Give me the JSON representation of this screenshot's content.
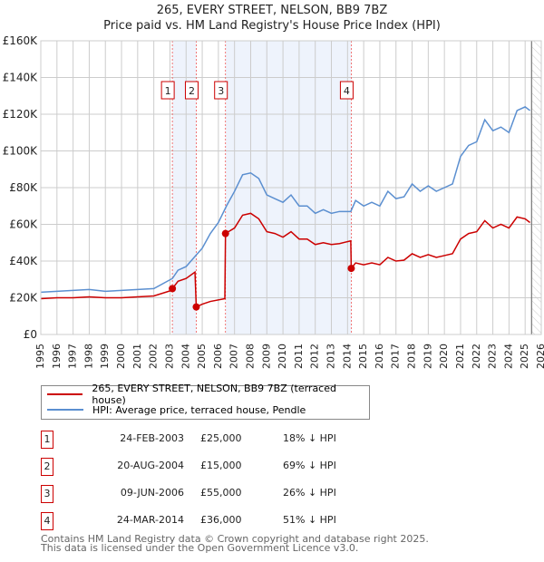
{
  "chart_data": {
    "type": "line",
    "title": "265, EVERY STREET, NELSON, BB9 7BZ",
    "subtitle": "Price paid vs. HM Land Registry's House Price Index (HPI)",
    "xlim": [
      1995,
      2026
    ],
    "ylim": [
      0,
      160000
    ],
    "yticks": [
      0,
      20000,
      40000,
      60000,
      80000,
      100000,
      120000,
      140000,
      160000
    ],
    "ytick_labels": [
      "£0",
      "£20K",
      "£40K",
      "£60K",
      "£80K",
      "£100K",
      "£120K",
      "£140K",
      "£160K"
    ],
    "xticks": [
      1995,
      1996,
      1997,
      1998,
      1999,
      2000,
      2001,
      2002,
      2003,
      2004,
      2005,
      2006,
      2007,
      2008,
      2009,
      2010,
      2011,
      2012,
      2013,
      2014,
      2015,
      2016,
      2017,
      2018,
      2019,
      2020,
      2021,
      2022,
      2023,
      2024,
      2025,
      2026
    ],
    "grid": true,
    "colors": {
      "property": "#cc0000",
      "hpi": "#5b8fd0",
      "shade": "#eef3fc"
    },
    "shaded_periods": [
      [
        2003.15,
        2004.63
      ],
      [
        2006.44,
        2014.23
      ]
    ],
    "forecast_from": 2025.4,
    "series": [
      {
        "name": "265, EVERY STREET, NELSON, BB9 7BZ (terraced house)",
        "color": "#cc0000",
        "x": [
          1995,
          1996,
          1997,
          1998,
          1999,
          2000,
          2001,
          2002,
          2003.1,
          2003.15,
          2003.5,
          2004,
          2004.55,
          2004.63,
          2005,
          2005.5,
          2006.4,
          2006.44,
          2007,
          2007.5,
          2008,
          2008.5,
          2009,
          2009.5,
          2010,
          2010.5,
          2011,
          2011.5,
          2012,
          2012.5,
          2013,
          2013.5,
          2014.2,
          2014.23,
          2014.5,
          2015,
          2015.5,
          2016,
          2016.5,
          2017,
          2017.5,
          2018,
          2018.5,
          2019,
          2019.5,
          2020,
          2020.5,
          2021,
          2021.5,
          2022,
          2022.5,
          2023,
          2023.5,
          2024,
          2024.5,
          2025,
          2025.3
        ],
        "values": [
          19500,
          20000,
          20000,
          20500,
          20000,
          20000,
          20500,
          21000,
          24000,
          25000,
          29000,
          30500,
          34000,
          15000,
          16500,
          18000,
          19500,
          55000,
          58000,
          65000,
          66000,
          63000,
          56000,
          55000,
          53000,
          56000,
          52000,
          52000,
          49000,
          50000,
          49000,
          49500,
          51000,
          36000,
          39000,
          38000,
          39000,
          38000,
          42000,
          40000,
          40500,
          44000,
          42000,
          43500,
          42000,
          43000,
          44000,
          52000,
          55000,
          56000,
          62000,
          58000,
          60000,
          58000,
          64000,
          63000,
          61000
        ]
      },
      {
        "name": "HPI: Average price, terraced house, Pendle",
        "color": "#5b8fd0",
        "x": [
          1995,
          1996,
          1997,
          1998,
          1999,
          2000,
          2001,
          2002,
          2003.15,
          2003.5,
          2004,
          2004.6,
          2005,
          2005.5,
          2006,
          2006.5,
          2007,
          2007.5,
          2008,
          2008.5,
          2009,
          2009.5,
          2010,
          2010.5,
          2011,
          2011.5,
          2012,
          2012.5,
          2013,
          2013.5,
          2014.2,
          2014.5,
          2015,
          2015.5,
          2016,
          2016.5,
          2017,
          2017.5,
          2018,
          2018.5,
          2019,
          2019.5,
          2020,
          2020.5,
          2021,
          2021.5,
          2022,
          2022.5,
          2023,
          2023.5,
          2024,
          2024.5,
          2025,
          2025.3
        ],
        "values": [
          23000,
          23500,
          24000,
          24500,
          23500,
          24000,
          24500,
          25000,
          30500,
          35000,
          37000,
          43000,
          47000,
          55000,
          61000,
          70000,
          78000,
          87000,
          88000,
          85000,
          76000,
          74000,
          72000,
          76000,
          70000,
          70000,
          66000,
          68000,
          66000,
          67000,
          67000,
          73000,
          70000,
          72000,
          70000,
          78000,
          74000,
          75000,
          82000,
          78000,
          81000,
          78000,
          80000,
          82000,
          97000,
          103000,
          105000,
          117000,
          111000,
          113000,
          110000,
          122000,
          124000,
          122000
        ]
      }
    ],
    "sales": [
      {
        "id": "1",
        "year": 2003.15,
        "price": 25000,
        "date": "24-FEB-2003",
        "price_label": "£25,000",
        "hpi_diff": "18% ↓ HPI"
      },
      {
        "id": "2",
        "year": 2004.63,
        "price": 15000,
        "date": "20-AUG-2004",
        "price_label": "£15,000",
        "hpi_diff": "69% ↓ HPI"
      },
      {
        "id": "3",
        "year": 2006.44,
        "price": 55000,
        "date": "09-JUN-2006",
        "price_label": "£55,000",
        "hpi_diff": "26% ↓ HPI"
      },
      {
        "id": "4",
        "year": 2014.23,
        "price": 36000,
        "date": "24-MAR-2014",
        "price_label": "£36,000",
        "hpi_diff": "51% ↓ HPI"
      }
    ]
  },
  "footer": {
    "line1": "Contains HM Land Registry data © Crown copyright and database right 2025.",
    "line2": "This data is licensed under the Open Government Licence v3.0."
  }
}
